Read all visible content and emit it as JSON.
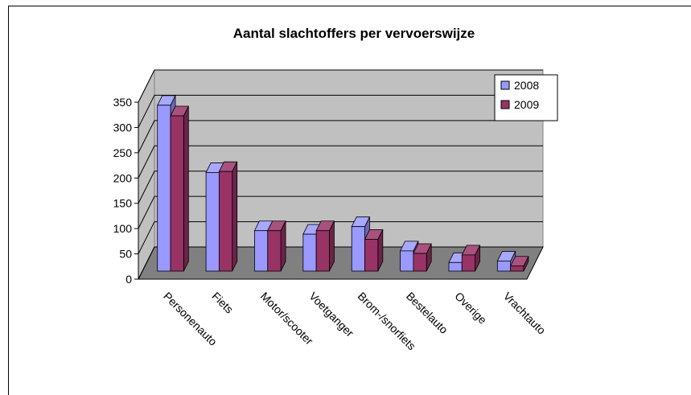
{
  "chart_data": {
    "type": "bar3d",
    "title": "Aantal slachtoffers per vervoerswijze",
    "categories": [
      "Personenauto",
      "Fiets",
      "Motor/scooter",
      "Voetganger",
      "Brom-/snorfiets",
      "Bestelauto",
      "Overige",
      "Vrachtauto"
    ],
    "series": [
      {
        "name": "2008",
        "color": "#9999ff",
        "values": [
          328,
          195,
          80,
          73,
          88,
          40,
          17,
          20
        ]
      },
      {
        "name": "2009",
        "color": "#993366",
        "values": [
          307,
          197,
          80,
          80,
          63,
          35,
          32,
          10
        ]
      }
    ],
    "ylim": [
      0,
      350
    ],
    "yticks": [
      0,
      50,
      100,
      150,
      200,
      250,
      300,
      350
    ],
    "grid": true,
    "legend": "top-right"
  }
}
